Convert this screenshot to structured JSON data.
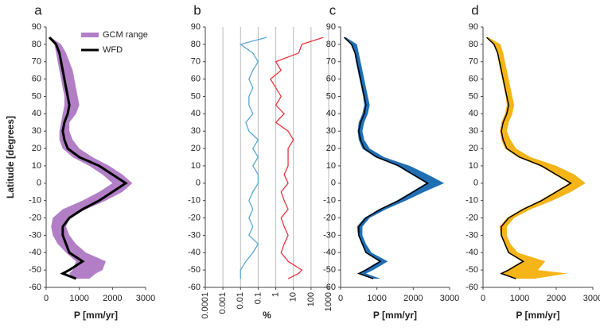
{
  "chart_data": [
    {
      "type": "line",
      "panel_label": "a",
      "ylabel": "Latitude [degrees]",
      "xlabel": "P [mm/yr]",
      "y": [
        84,
        80,
        75,
        70,
        65,
        60,
        55,
        50,
        45,
        40,
        35,
        30,
        25,
        20,
        15,
        10,
        5,
        0,
        -5,
        -10,
        -15,
        -20,
        -25,
        -30,
        -35,
        -40,
        -45,
        -50,
        -52,
        -55
      ],
      "xlim": [
        0,
        3000
      ],
      "xticks": [
        0,
        1000,
        2000,
        3000
      ],
      "ylim": [
        -60,
        90
      ],
      "yticks": [
        -60,
        -50,
        -40,
        -30,
        -20,
        -10,
        0,
        10,
        20,
        30,
        40,
        50,
        60,
        70,
        80,
        90
      ],
      "legend": "upper right",
      "series": [
        {
          "name": "GCM range",
          "color": "#b27fc6",
          "min": [
            50,
            250,
            300,
            350,
            400,
            450,
            500,
            550,
            550,
            500,
            450,
            400,
            400,
            500,
            800,
            1300,
            1700,
            2000,
            1600,
            1100,
            500,
            200,
            150,
            200,
            350,
            600,
            900,
            800,
            700,
            800
          ],
          "max": [
            150,
            450,
            600,
            700,
            800,
            850,
            900,
            950,
            1000,
            900,
            700,
            700,
            800,
            1000,
            1400,
            1900,
            2300,
            2600,
            2300,
            1800,
            1200,
            700,
            600,
            700,
            900,
            1200,
            1800,
            1700,
            1500,
            1300
          ]
        },
        {
          "name": "WFD",
          "color": "#000000",
          "values": [
            100,
            300,
            400,
            450,
            500,
            550,
            600,
            650,
            700,
            650,
            550,
            500,
            550,
            650,
            1000,
            1600,
            2000,
            2400,
            2000,
            1600,
            1100,
            700,
            500,
            500,
            600,
            700,
            1100,
            700,
            500,
            900
          ]
        }
      ]
    },
    {
      "type": "line",
      "panel_label": "b",
      "xlabel": "%",
      "log": true,
      "grid": true,
      "y": [
        84,
        80,
        75,
        70,
        65,
        60,
        55,
        50,
        45,
        40,
        35,
        30,
        25,
        20,
        15,
        10,
        5,
        0,
        -5,
        -10,
        -15,
        -20,
        -25,
        -30,
        -35,
        -40,
        -45,
        -50,
        -52,
        -55
      ],
      "xlim": [
        0.0001,
        1000
      ],
      "xticks": [
        0.0001,
        0.001,
        0.01,
        0.1,
        1,
        10,
        100,
        1000
      ],
      "ylim": [
        -60,
        90
      ],
      "yticks": [
        -60,
        -50,
        -40,
        -30,
        -20,
        -10,
        0,
        10,
        20,
        30,
        40,
        50,
        60,
        70,
        80,
        90
      ],
      "series": [
        {
          "color": "#5ba7d1",
          "values": [
            0.3,
            0.01,
            0.05,
            0.1,
            0.05,
            0.03,
            0.05,
            0.03,
            0.03,
            0.05,
            0.02,
            0.03,
            0.1,
            0.05,
            0.1,
            0.05,
            0.1,
            0.1,
            0.05,
            0.03,
            0.05,
            0.03,
            0.05,
            0.03,
            0.1,
            0.05,
            0.02,
            0.01,
            0.01,
            0.01
          ]
        },
        {
          "color": "#e8343f",
          "values": [
            500,
            30,
            20,
            1,
            2,
            0.5,
            1,
            2,
            1,
            3,
            1,
            5,
            10,
            5,
            5,
            5,
            3,
            5,
            2,
            3,
            5,
            2,
            3,
            5,
            3,
            2,
            5,
            30,
            20,
            5
          ]
        }
      ]
    },
    {
      "type": "line",
      "panel_label": "c",
      "xlabel": "P [mm/yr]",
      "y": [
        84,
        80,
        75,
        70,
        65,
        60,
        55,
        50,
        45,
        40,
        35,
        30,
        25,
        20,
        15,
        10,
        5,
        0,
        -5,
        -10,
        -15,
        -20,
        -25,
        -30,
        -35,
        -40,
        -45,
        -50,
        -52,
        -55
      ],
      "xlim": [
        0,
        3000
      ],
      "xticks": [
        0,
        1000,
        2000,
        3000
      ],
      "ylim": [
        -60,
        90
      ],
      "yticks": [
        -60,
        -50,
        -40,
        -30,
        -20,
        -10,
        0,
        10,
        20,
        30,
        40,
        50,
        60,
        70,
        80,
        90
      ],
      "series": [
        {
          "color": "#1f6fb5",
          "min": [
            80,
            280,
            380,
            420,
            470,
            520,
            570,
            620,
            650,
            600,
            500,
            470,
            500,
            600,
            950,
            1550,
            1950,
            2350,
            1950,
            1550,
            1050,
            650,
            450,
            480,
            580,
            680,
            1050,
            650,
            480,
            850
          ],
          "max": [
            150,
            450,
            500,
            550,
            600,
            650,
            700,
            750,
            800,
            750,
            650,
            600,
            650,
            800,
            1200,
            1900,
            2400,
            2850,
            2300,
            1800,
            1250,
            800,
            600,
            600,
            700,
            850,
            1300,
            900,
            700,
            1100
          ]
        },
        {
          "color": "#000000",
          "values": [
            100,
            300,
            400,
            450,
            500,
            550,
            600,
            650,
            700,
            650,
            550,
            500,
            550,
            650,
            1000,
            1600,
            2000,
            2400,
            2000,
            1600,
            1100,
            700,
            500,
            500,
            600,
            700,
            1100,
            700,
            500,
            900
          ]
        }
      ]
    },
    {
      "type": "line",
      "panel_label": "d",
      "xlabel": "P [mm/yr]",
      "y": [
        84,
        80,
        75,
        70,
        65,
        60,
        55,
        50,
        45,
        40,
        35,
        30,
        25,
        20,
        15,
        10,
        5,
        0,
        -5,
        -10,
        -15,
        -20,
        -25,
        -30,
        -35,
        -40,
        -45,
        -50,
        -52,
        -55
      ],
      "xlim": [
        0,
        3000
      ],
      "xticks": [
        0,
        1000,
        2000,
        3000
      ],
      "ylim": [
        -60,
        90
      ],
      "yticks": [
        -60,
        -50,
        -40,
        -30,
        -20,
        -10,
        0,
        10,
        20,
        30,
        40,
        50,
        60,
        70,
        80,
        90
      ],
      "series": [
        {
          "color": "#f5b417",
          "min": [
            80,
            280,
            380,
            420,
            470,
            520,
            570,
            620,
            650,
            600,
            500,
            470,
            500,
            600,
            950,
            1550,
            1950,
            2350,
            1950,
            1550,
            1050,
            650,
            450,
            480,
            580,
            680,
            1050,
            650,
            480,
            850
          ],
          "max": [
            150,
            480,
            550,
            600,
            650,
            700,
            750,
            800,
            850,
            800,
            700,
            650,
            750,
            900,
            1300,
            2000,
            2500,
            2800,
            2400,
            1900,
            1300,
            850,
            650,
            650,
            750,
            950,
            1700,
            1500,
            2300,
            1400
          ]
        },
        {
          "color": "#000000",
          "values": [
            100,
            300,
            400,
            450,
            500,
            550,
            600,
            650,
            700,
            650,
            550,
            500,
            550,
            650,
            1000,
            1600,
            2000,
            2400,
            2000,
            1600,
            1100,
            700,
            500,
            500,
            600,
            700,
            1100,
            700,
            500,
            900
          ]
        }
      ]
    }
  ]
}
